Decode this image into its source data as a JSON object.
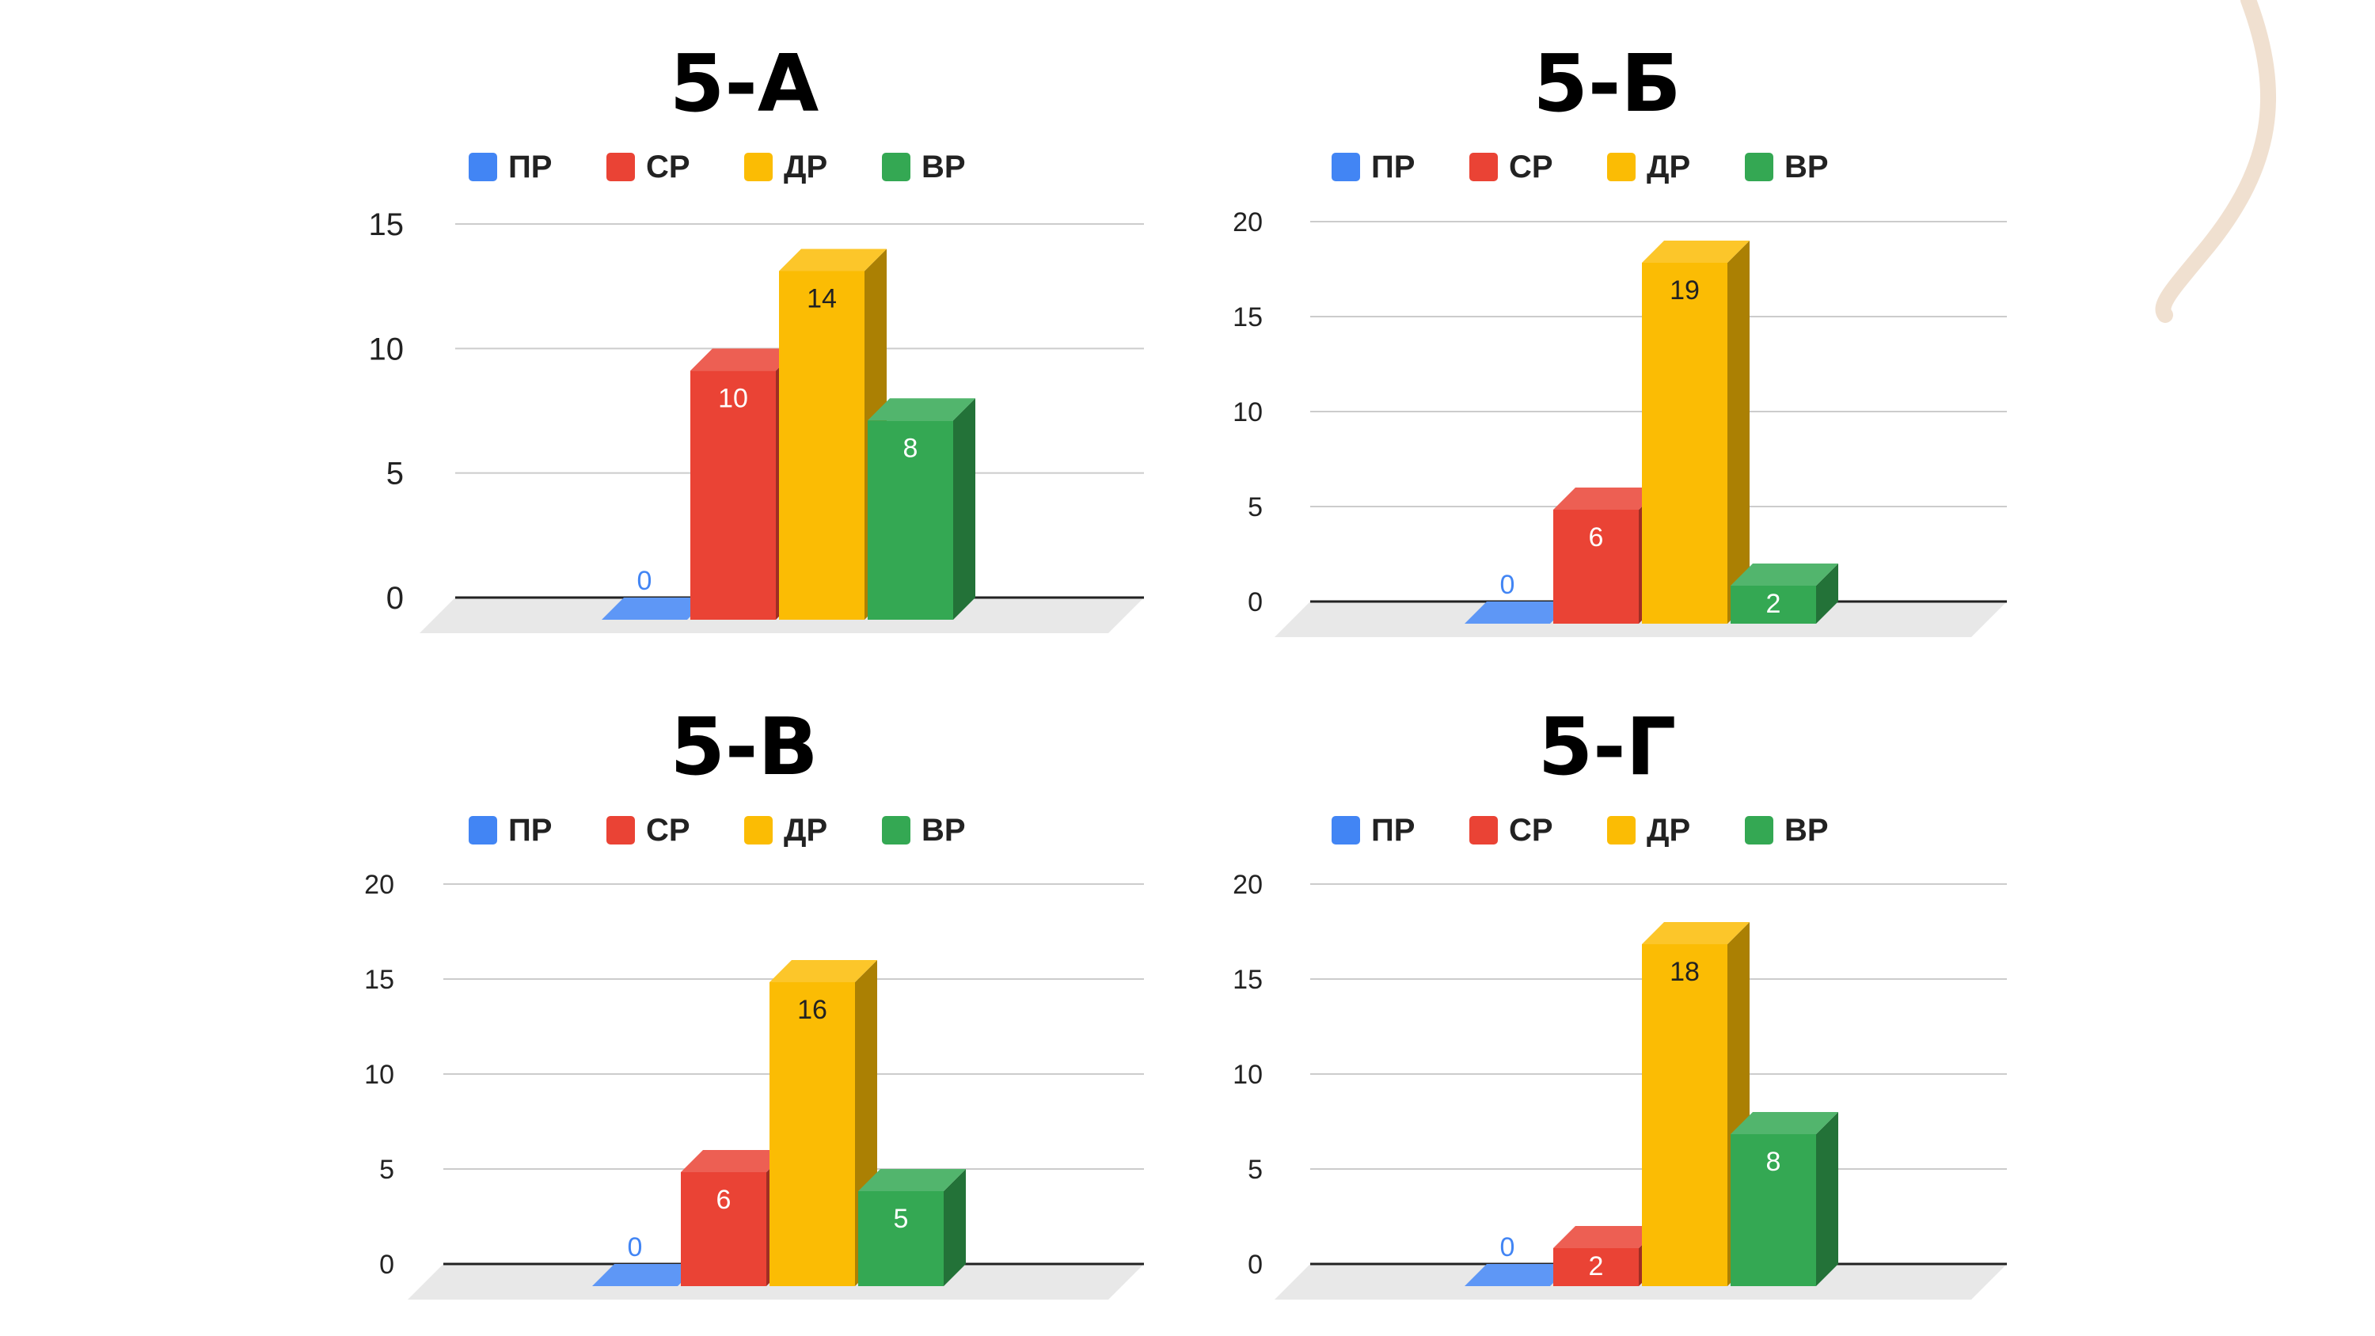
{
  "colors": {
    "ПР": "#4285f4",
    "СР": "#ea4335",
    "ДР": "#fbbc04",
    "ВР": "#34a853",
    "grid": "#cccccc",
    "axis": "#222222",
    "floor": "#e8e8e8",
    "decoration": "#f0e0d0"
  },
  "chart_data": [
    {
      "type": "bar",
      "title": "5-А",
      "categories": [
        "ПР",
        "СР",
        "ДР",
        "ВР"
      ],
      "values": [
        0,
        10,
        14,
        8
      ],
      "ylim": [
        0,
        15
      ],
      "yticks": [
        0,
        5,
        10,
        15
      ],
      "legend": "top",
      "grid": true
    },
    {
      "type": "bar",
      "title": "5-Б",
      "categories": [
        "ПР",
        "СР",
        "ДР",
        "ВР"
      ],
      "values": [
        0,
        6,
        19,
        2
      ],
      "ylim": [
        0,
        20
      ],
      "yticks": [
        0,
        5,
        10,
        15,
        20
      ],
      "legend": "top",
      "grid": true
    },
    {
      "type": "bar",
      "title": "5-В",
      "categories": [
        "ПР",
        "СР",
        "ДР",
        "ВР"
      ],
      "values": [
        0,
        6,
        16,
        5
      ],
      "ylim": [
        0,
        20
      ],
      "yticks": [
        0,
        5,
        10,
        15,
        20
      ],
      "legend": "top",
      "grid": true
    },
    {
      "type": "bar",
      "title": "5-Г",
      "categories": [
        "ПР",
        "СР",
        "ДР",
        "ВР"
      ],
      "values": [
        0,
        2,
        18,
        8
      ],
      "ylim": [
        0,
        20
      ],
      "yticks": [
        0,
        5,
        10,
        15,
        20
      ],
      "legend": "top",
      "grid": true
    }
  ]
}
